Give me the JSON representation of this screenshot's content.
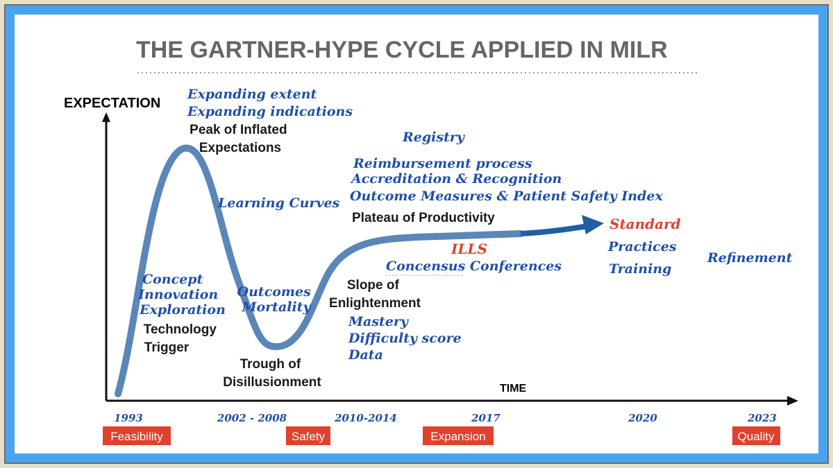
{
  "title": "THE GARTNER-HYPE CYCLE APPLIED IN MILR",
  "axes": {
    "y_label": "EXPECTATION",
    "x_label": "TIME"
  },
  "phases": {
    "peak": [
      "Peak of Inflated",
      "Expectations"
    ],
    "trigger": [
      "Technology",
      "Trigger"
    ],
    "trough": [
      "Trough of",
      "Disillusionment"
    ],
    "slope": [
      "Slope of",
      "Enlightenment"
    ],
    "plateau": "Plateau of Productivity"
  },
  "annotations": {
    "peak_notes": [
      "Expanding extent",
      "Expanding indications"
    ],
    "learning": "Learning Curves",
    "trigger_notes": [
      "Concept",
      "Innovation",
      "Exploration"
    ],
    "trough_notes": [
      "Outcomes",
      "Mortality"
    ],
    "slope_notes": [
      "Mastery",
      "Difficulty score",
      "Data"
    ],
    "registry": "Registry",
    "plateau_notes": [
      "Reimbursement process",
      "Accreditation & Recognition",
      "Outcome Measures & Patient Safety Index"
    ],
    "ills": "ILLS",
    "consensus": "Concensus Conferences",
    "standard": "Standard",
    "practices": [
      "Practices",
      "Training"
    ],
    "refinement": "Refinement"
  },
  "timeline": {
    "years": [
      "1993",
      "2002 - 2008",
      "2010-2014",
      "2017",
      "2020",
      "2023"
    ],
    "stages": [
      "Feasibility",
      "Safety",
      "Expansion",
      "Quality"
    ]
  },
  "colors": {
    "curve": "#5b86b8",
    "arrow": "#1f5fa3",
    "badge": "#e0402e",
    "border": "#4aa3ef"
  }
}
